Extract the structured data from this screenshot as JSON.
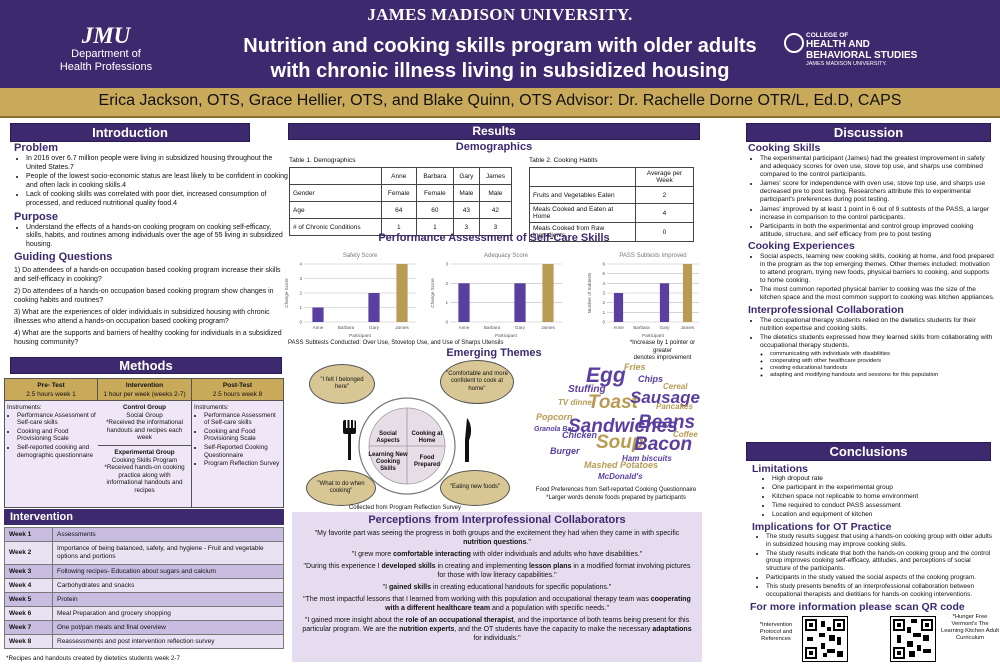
{
  "header": {
    "university": "JAMES MADISON UNIVERSITY.",
    "title_line1": "Nutrition and cooking skills program with older adults",
    "title_line2": "with chronic illness living in subsidized housing",
    "jmu_logo": "JMU",
    "jmu_dept_line1": "Department of",
    "jmu_dept_line2": "Health Professions",
    "chbs_line1": "COLLEGE OF",
    "chbs_line2": "HEALTH AND",
    "chbs_line3": "BEHAVIORAL STUDIES",
    "chbs_line4": "JAMES MADISON UNIVERSITY.",
    "authors": "Erica Jackson, OTS, Grace Hellier, OTS, and Blake Quinn, OTS Advisor: Dr. Rachelle Dorne OTR/L, Ed.D, CAPS"
  },
  "colors": {
    "purple": "#3d2a6e",
    "gold": "#c9a95a",
    "bar_purple": "#5b3fa0",
    "bar_gold": "#b89c54"
  },
  "intro": {
    "heading": "Introduction",
    "problem_h": "Problem",
    "problem": [
      "In 2016 over 6.7 million people were living in subsidized housing throughout the United States.7",
      "People of the lowest socio-economic status are least likely to be confident in cooking and often lack in cooking skills.4",
      "Lack of cooking skills was correlated with poor diet, increased consumption of processed, and reduced nutritional quality food.4"
    ],
    "purpose_h": "Purpose",
    "purpose": [
      "Understand the effects of a hands-on cooking program on cooking self-efficacy, skills, habits, and routines among individuals over the age of 55 living in subsidized housing."
    ],
    "guiding_h": "Guiding Questions",
    "guiding": [
      "1) Do attendees of a hands-on occupation based cooking program increase their skills and self-efficacy in cooking?",
      "2) Do attendees of a hands-on occupation based cooking program show changes in cooking habits and routines?",
      "3) What are the experiences of older individuals in subsidized housing with chronic illnesses who attend a hands-on occupation based cooking program?",
      "4) What are the supports and barriers of healthy cooking for individuals in a subsidized housing community?"
    ]
  },
  "methods": {
    "heading": "Methods",
    "pre_h": "Pre- Test",
    "pre_sub": "2.5 hours week 1",
    "int_h": "Intervention",
    "int_sub": "1 hour per week (weeks 2-7)",
    "post_h": "Post-Test",
    "post_sub": "2.5 hours week 8",
    "instr": "Instruments:",
    "pre_items": [
      "Performance Assessment of Self-care skills",
      "Cooking and Food Provisioning Scale",
      "Self-reported cooking and demographic questionnaire"
    ],
    "post_items": [
      "Performance Assessment of Self-care skills",
      "Cooking and Food Provisioning Scale",
      "Self-Reported Cooking Questionnaire",
      "Program Reflection Survey"
    ],
    "control_h": "Control Group",
    "control_1": "Social Group",
    "control_2": "*Received the informational handouts and recipes each week",
    "exp_h": "Experimental Group",
    "exp_1": "Cooking Skills Program",
    "exp_2": "*Received hands-on cooking practice along with informational handouts and recipes"
  },
  "intervention": {
    "heading": "Intervention",
    "rows": [
      [
        "Week 1",
        "Assessments"
      ],
      [
        "Week 2",
        "Importance of being balanced, safety, and hygiene - Fruit and vegetable options and portions"
      ],
      [
        "Week 3",
        "Following recipes- Education about sugars and calcium"
      ],
      [
        "Week 4",
        "Carbohydrates and snacks"
      ],
      [
        "Week 5",
        "Protein"
      ],
      [
        "Week 6",
        "Meal Preparation and grocery shopping"
      ],
      [
        "Week 7",
        "One pot/pan meals and final overview"
      ],
      [
        "Week 8",
        "Reassessments and post intervention reflection survey"
      ]
    ],
    "note": "*Recipes and handouts created by dietetics students week 2-7"
  },
  "results": {
    "heading": "Results",
    "demo_h": "Demographics",
    "t1_caption": "Table 1. Demographics",
    "t1_cols": [
      "",
      "Anne",
      "Barbara",
      "Gary",
      "James"
    ],
    "t1_rows": [
      [
        "Gender",
        "Female",
        "Female",
        "Male",
        "Male"
      ],
      [
        "Age",
        "64",
        "60",
        "43",
        "42"
      ],
      [
        "# of Chronic Conditions",
        "1",
        "1",
        "3",
        "3"
      ]
    ],
    "t2_caption": "Table 2. Cooking Habits",
    "t2_cols": [
      "",
      "Average per Week"
    ],
    "t2_rows": [
      [
        "Fruits and Vegetables Eaten",
        "2"
      ],
      [
        "Meals Cooked and Eaten at Home",
        "4"
      ],
      [
        "Meals Cooked from Raw Ingredients",
        "0"
      ]
    ],
    "pass_h": "Performance Assessment of Self-Care Skills",
    "pass_note": "PASS Subtests Conducted: Over Use, Stovetop Use, and Use of Sharps Utensils",
    "pass_note2_l1": "*Increase by 1 pointer or greater",
    "pass_note2_l2": "denotes improvement",
    "themes_h": "Emerging Themes",
    "quote1": "\"I felt I belonged here\"",
    "quote2": "\"Comfortable and more confident to cook at home\"",
    "quote3": "\"What to do when cooking\"",
    "quote4": "\"Eating new foods\"",
    "q1": "Social Aspects",
    "q2": "Cooking at Home",
    "q3": "Learning New Cooking Skills",
    "q4": "Food Prepared",
    "wheel_caption": "Collected from Program Reflection Survey",
    "wc_caption1": "Food Preferences from Self-reported Cooking Questionnaire",
    "wc_caption2": "*Larger words denote foods prepared by participants",
    "words": [
      "Fries",
      "Egg",
      "Chips",
      "Stuffing",
      "Toast",
      "Sausage",
      "Cereal",
      "TV dinner",
      "Popcorn",
      "Sandwiches",
      "Beans",
      "Pancakes",
      "Granola Bar",
      "Chicken",
      "Soup",
      "Bacon",
      "Coffee",
      "Burger",
      "Mashed Potatoes",
      "Ham biscuits",
      "McDonald's"
    ]
  },
  "chart_data": [
    {
      "type": "bar",
      "title": "Safety Score",
      "categories": [
        "Anne",
        "Barbara",
        "Gary",
        "James"
      ],
      "values": [
        1,
        0,
        2,
        4
      ],
      "xlabel": "Participant",
      "ylabel": "Change Score",
      "ylim": [
        0,
        4
      ],
      "yticks": [
        0,
        1,
        2,
        3,
        4
      ]
    },
    {
      "type": "bar",
      "title": "Adequacy Score",
      "categories": [
        "Anne",
        "Barbara",
        "Gary",
        "James"
      ],
      "values": [
        2,
        0,
        2,
        3
      ],
      "xlabel": "Participant",
      "ylabel": "Change Score",
      "ylim": [
        0,
        3
      ],
      "yticks": [
        0,
        1,
        2,
        3
      ]
    },
    {
      "type": "bar",
      "title": "PASS Subtests Improved",
      "categories": [
        "Anne",
        "Barbara",
        "Gary",
        "James"
      ],
      "values": [
        3,
        0,
        4,
        6
      ],
      "xlabel": "Participant",
      "ylabel": "Number of Subtests",
      "ylim": [
        0,
        6
      ],
      "yticks": [
        0,
        1,
        2,
        3,
        4,
        5,
        6
      ]
    }
  ],
  "collab": {
    "heading": "Perceptions from Interprofessional Collaborators",
    "quotes": [
      [
        "\"My favorite part was seeing the progress in both groups and the excitement they had when they came in with specific ",
        "nutrition questions",
        ".\""
      ],
      [
        "\"I grew more ",
        "comfortable interacting",
        " with older individuals and adults who have disabilities.\""
      ],
      [
        "\"During this experience I ",
        "developed skills",
        " in creating and implementing ",
        "lesson plans",
        " in a modified format involving pictures for those with low literacy capabilities.\""
      ],
      [
        "\"I ",
        "gained skills",
        " in creating educational handouts for specific populations.\""
      ],
      [
        "\"The most impactful lessons that I learned from working with this population and occupational therapy team was ",
        "cooperating with a different healthcare team",
        " and a population with specific needs.\""
      ],
      [
        "\"I gained more insight about the ",
        "role of an occupational therapist",
        ", and the importance of both teams being present for this particular program. We are the ",
        "nutrition experts",
        ", and the OT students have the capacity to make the necessary ",
        "adaptations",
        " for individuals.\""
      ]
    ]
  },
  "discussion": {
    "heading": "Discussion",
    "skills_h": "Cooking Skills",
    "skills": [
      "The experimental participant (James) had the greatest improvement in safety and adequacy scores for oven use, stove top use, and sharps use combined compared to the control participants.",
      "James' score for independence with oven use, stove top use, and sharps use decreased pre to post testing. Researchers attribute this to experimental participant's preferences during post testing.",
      "James' improved by at least 1 point in 6 out of 9 subtests of the PASS, a larger increase in comparison to the control participants.",
      "Participants in both the experimental and control group improved cooking attitude, structure, and self efficacy from pre to post testing"
    ],
    "exp_h": "Cooking Experiences",
    "exp": [
      "Social aspects, learning new cooking skills, cooking at home, and food prepared in the program as the top emerging themes. Other themes included: motivation to attend program, trying new foods, physical barriers to cooking, and supports to home cooking.",
      "The most common reported physical barrier to cooking was the size of the kitchen space and the most common support to cooking was kitchen appliances."
    ],
    "ipc_h": "Interprofessional Collaboration",
    "ipc": [
      "The occupational therapy students relied on the dietetics students for their nutrition expertise and cooking skills.",
      "The dietetics students expressed how they learned skills from collaborating with occupational therapy students."
    ],
    "ipc_sub": [
      "communicating with individuals with disabilities",
      "cooperating with other healthcare providers",
      "creating educational handouts",
      "adapting and modifying handouts and sessions for this population"
    ]
  },
  "conclusions": {
    "heading": "Conclusions",
    "lim_h": "Limitations",
    "lim": [
      "High dropout rate",
      "One participant in the experimental group",
      "Kitchen space not replicable to home environment",
      "Time required to conduct PASS assessment",
      "Location and equipment of kitchen"
    ],
    "impl_h": "Implications for OT Practice",
    "impl": [
      "The study results suggest that using a hands-on cooking group with older adults in subsidized housing may improve cooking skills.",
      "The study results indicate that both the hands-on cooking group and the control group improves cooking self-efficacy, attitudes, and perceptions of social structure of the participants.",
      "Participants in the study valued the social aspects of the cooking program.",
      "This study presents benefits of an interprofessional collaboration between occupational therapists and dietitians for hands-on cooking interventions."
    ],
    "qr_h": "For more information please scan QR code",
    "qr1_label": "*Intervention Protocol and References",
    "qr2_label": "*Hunger Free Vermont's The Learning Kitchen Adult Curriculum"
  }
}
